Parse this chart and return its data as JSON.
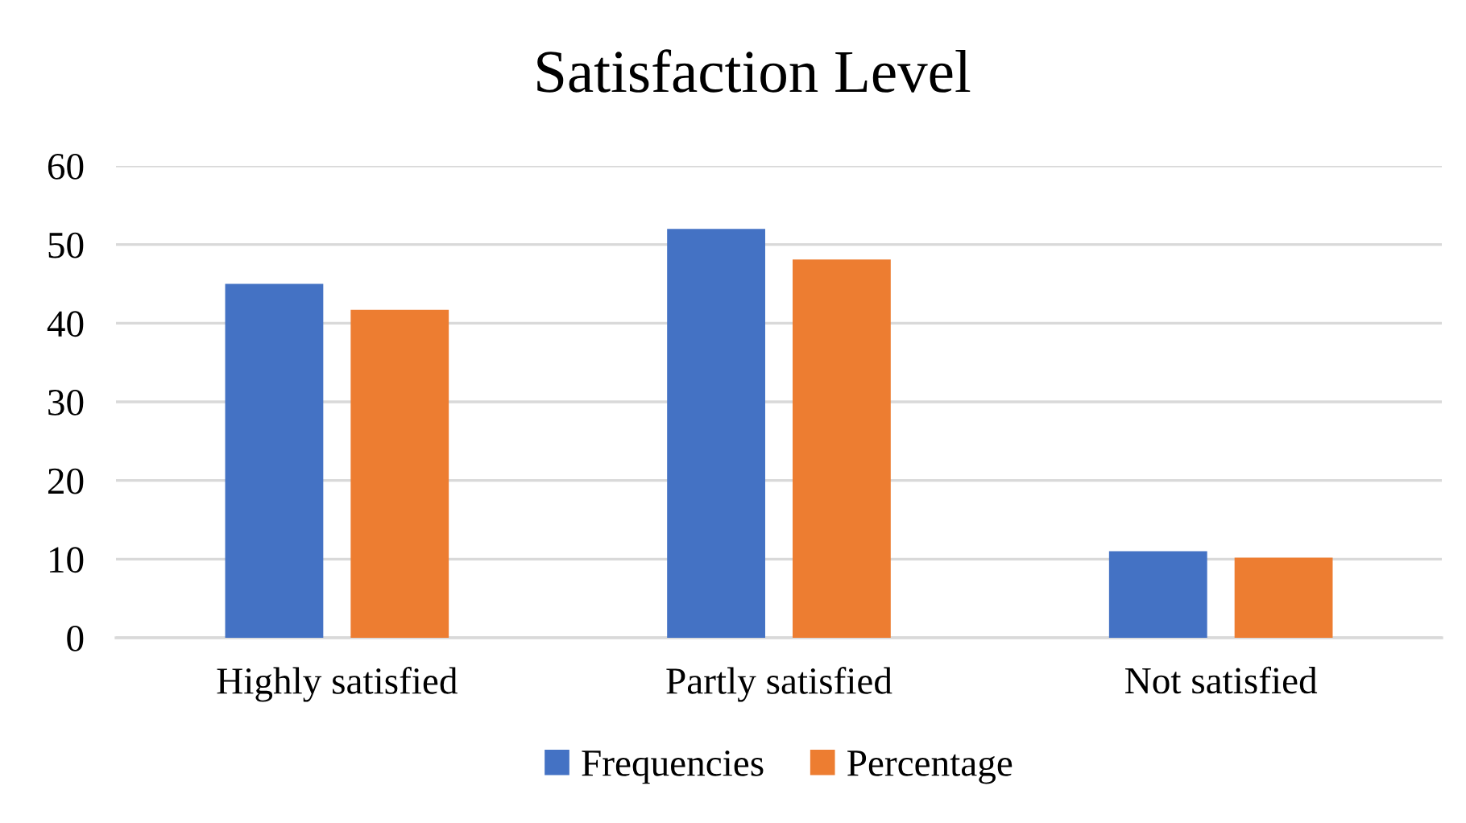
{
  "chart_data": {
    "type": "bar",
    "title": "Satisfaction Level",
    "categories": [
      "Highly satisfied",
      "Partly satisfied",
      "Not satisfied"
    ],
    "series": [
      {
        "name": "Frequencies",
        "color": "#4472c4",
        "values": [
          45,
          52,
          11
        ]
      },
      {
        "name": "Percentage",
        "color": "#ed7d31",
        "values": [
          41.7,
          48.1,
          10.2
        ]
      }
    ],
    "ylim": [
      0,
      60
    ],
    "yticks": [
      0,
      10,
      20,
      30,
      40,
      50,
      60
    ],
    "grid": "y",
    "legend": "bottom"
  }
}
